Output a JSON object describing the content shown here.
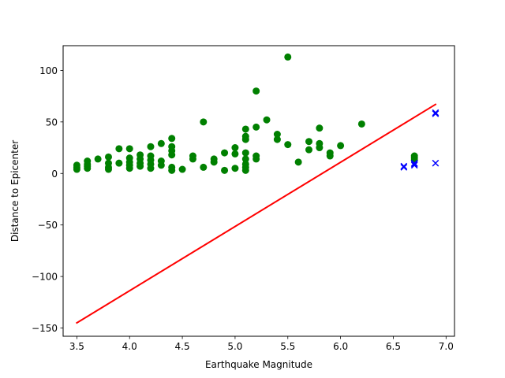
{
  "chart_data": {
    "type": "scatter",
    "title": "",
    "xlabel": "Earthquake Magnitude",
    "ylabel": "Distance to Epicenter",
    "xlim": [
      3.37,
      7.08
    ],
    "ylim": [
      -158,
      124
    ],
    "xticks": [
      3.5,
      4.0,
      4.5,
      5.0,
      5.5,
      6.0,
      6.5,
      7.0
    ],
    "xtick_labels": [
      "3.5",
      "4.0",
      "4.5",
      "5.0",
      "5.5",
      "6.0",
      "6.5",
      "7.0"
    ],
    "yticks": [
      -150,
      -100,
      -50,
      0,
      50,
      100
    ],
    "ytick_labels": [
      "−150",
      "−100",
      "−50",
      "0",
      "50",
      "100"
    ],
    "grid": false,
    "legend": false,
    "series": [
      {
        "marker": "o",
        "color": "#008000",
        "points": [
          [
            3.5,
            4
          ],
          [
            3.5,
            6
          ],
          [
            3.5,
            8
          ],
          [
            3.6,
            5
          ],
          [
            3.6,
            7
          ],
          [
            3.6,
            9
          ],
          [
            3.6,
            12
          ],
          [
            3.7,
            14
          ],
          [
            3.8,
            4
          ],
          [
            3.8,
            6
          ],
          [
            3.8,
            10
          ],
          [
            3.8,
            16
          ],
          [
            3.9,
            10
          ],
          [
            3.9,
            24
          ],
          [
            4.0,
            5
          ],
          [
            4.0,
            8
          ],
          [
            4.0,
            11
          ],
          [
            4.0,
            15
          ],
          [
            4.0,
            24
          ],
          [
            4.1,
            7
          ],
          [
            4.1,
            10
          ],
          [
            4.1,
            14
          ],
          [
            4.1,
            18
          ],
          [
            4.2,
            5
          ],
          [
            4.2,
            9
          ],
          [
            4.2,
            13
          ],
          [
            4.2,
            17
          ],
          [
            4.2,
            26
          ],
          [
            4.3,
            8
          ],
          [
            4.3,
            12
          ],
          [
            4.3,
            29
          ],
          [
            4.4,
            3
          ],
          [
            4.4,
            6
          ],
          [
            4.4,
            18
          ],
          [
            4.4,
            22
          ],
          [
            4.4,
            26
          ],
          [
            4.4,
            34
          ],
          [
            4.5,
            4
          ],
          [
            4.6,
            14
          ],
          [
            4.6,
            17
          ],
          [
            4.7,
            6
          ],
          [
            4.7,
            50
          ],
          [
            4.8,
            11
          ],
          [
            4.8,
            14
          ],
          [
            4.9,
            3
          ],
          [
            4.9,
            20
          ],
          [
            5.0,
            5
          ],
          [
            5.0,
            19
          ],
          [
            5.0,
            25
          ],
          [
            5.1,
            3
          ],
          [
            5.1,
            6
          ],
          [
            5.1,
            9
          ],
          [
            5.1,
            14
          ],
          [
            5.1,
            20
          ],
          [
            5.1,
            33
          ],
          [
            5.1,
            36
          ],
          [
            5.1,
            43
          ],
          [
            5.2,
            14
          ],
          [
            5.2,
            17
          ],
          [
            5.2,
            45
          ],
          [
            5.2,
            80
          ],
          [
            5.3,
            52
          ],
          [
            5.4,
            33
          ],
          [
            5.4,
            38
          ],
          [
            5.5,
            28
          ],
          [
            5.5,
            113
          ],
          [
            5.6,
            11
          ],
          [
            5.7,
            23
          ],
          [
            5.7,
            31
          ],
          [
            5.8,
            25
          ],
          [
            5.8,
            29
          ],
          [
            5.8,
            44
          ],
          [
            5.9,
            17
          ],
          [
            5.9,
            20
          ],
          [
            6.0,
            27
          ],
          [
            6.2,
            48
          ],
          [
            6.7,
            13
          ],
          [
            6.7,
            15
          ],
          [
            6.7,
            17
          ]
        ]
      },
      {
        "marker": "x",
        "color": "#0000ff",
        "points": [
          [
            6.6,
            6
          ],
          [
            6.6,
            7
          ],
          [
            6.7,
            8
          ],
          [
            6.7,
            9
          ],
          [
            6.7,
            10
          ],
          [
            6.9,
            10
          ],
          [
            6.9,
            58
          ],
          [
            6.9,
            59
          ]
        ]
      },
      {
        "marker": "line",
        "color": "#ff0000",
        "points": [
          [
            3.5,
            -145
          ],
          [
            6.9,
            67
          ]
        ]
      }
    ]
  }
}
